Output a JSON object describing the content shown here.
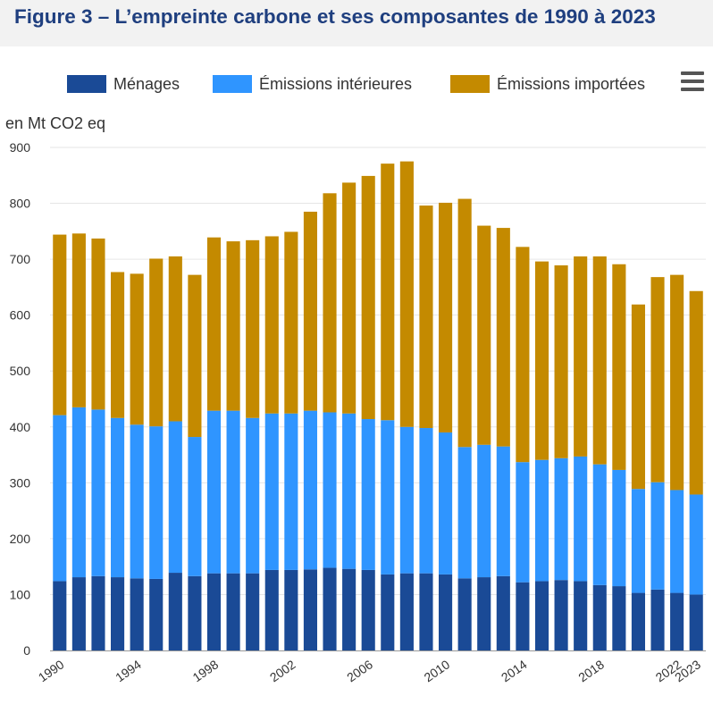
{
  "title": "Figure 3 – L’empreinte carbone et ses composantes de 1990 à 2023",
  "menu": {
    "icon": "hamburger-menu-icon"
  },
  "colors": {
    "menages": "#1a4a96",
    "emissions_interieures": "#2f95ff",
    "emissions_importees": "#c48a00",
    "gridline": "#e6e6e6",
    "title": "#1f3f7f"
  },
  "chart_data": {
    "type": "bar",
    "stacked": true,
    "title": "Figure 3 – L’empreinte carbone et ses composantes de 1990 à 2023",
    "ylabel": "en Mt CO2 eq",
    "ylim": [
      0,
      900
    ],
    "yticks": [
      0,
      100,
      200,
      300,
      400,
      500,
      600,
      700,
      800,
      900
    ],
    "xtick_labels": [
      "1990",
      "1994",
      "1998",
      "2002",
      "2006",
      "2010",
      "2014",
      "2018",
      "2022",
      "2023"
    ],
    "legend_position": "top",
    "categories": [
      "1990",
      "1991",
      "1992",
      "1993",
      "1994",
      "1995",
      "1996",
      "1997",
      "1998",
      "1999",
      "2000",
      "2001",
      "2002",
      "2003",
      "2004",
      "2005",
      "2006",
      "2007",
      "2008",
      "2009",
      "2010",
      "2011",
      "2012",
      "2013",
      "2014",
      "2015",
      "2016",
      "2017",
      "2018",
      "2019",
      "2020",
      "2021",
      "2022",
      "2023"
    ],
    "series": [
      {
        "name": "Ménages",
        "values": [
          124,
          131,
          133,
          131,
          129,
          128,
          139,
          133,
          138,
          138,
          138,
          144,
          144,
          145,
          148,
          146,
          144,
          136,
          138,
          138,
          136,
          129,
          131,
          133,
          122,
          124,
          126,
          124,
          117,
          115,
          103,
          109,
          103,
          100
        ]
      },
      {
        "name": "Émissions intérieures",
        "values": [
          297,
          304,
          298,
          285,
          275,
          273,
          271,
          249,
          291,
          291,
          278,
          280,
          280,
          284,
          278,
          278,
          270,
          276,
          262,
          260,
          254,
          235,
          237,
          232,
          215,
          217,
          218,
          223,
          216,
          208,
          186,
          192,
          184,
          179
        ]
      },
      {
        "name": "Émissions importées",
        "values": [
          323,
          311,
          306,
          261,
          270,
          300,
          295,
          290,
          310,
          303,
          318,
          317,
          325,
          356,
          392,
          413,
          435,
          459,
          475,
          398,
          411,
          444,
          392,
          391,
          385,
          355,
          345,
          358,
          372,
          368,
          330,
          367,
          385,
          364
        ]
      }
    ]
  }
}
